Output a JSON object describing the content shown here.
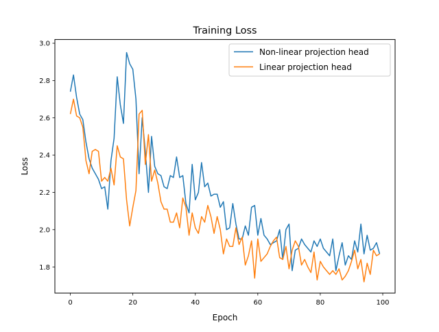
{
  "chart_data": {
    "type": "line",
    "title": "Training Loss",
    "xlabel": "Epoch",
    "ylabel": "Loss",
    "xlim": [
      -4.95,
      103.95
    ],
    "ylim": [
      1.66,
      3.02
    ],
    "x_ticks": [
      0,
      20,
      40,
      60,
      80,
      100
    ],
    "y_ticks": [
      1.8,
      2.0,
      2.2,
      2.4,
      2.6,
      2.8,
      3.0
    ],
    "x_tick_labels": [
      "0",
      "20",
      "40",
      "60",
      "80",
      "100"
    ],
    "y_tick_labels": [
      "1.8",
      "2.0",
      "2.2",
      "2.4",
      "2.6",
      "2.8",
      "3.0"
    ],
    "grid": false,
    "legend_position": "top-right",
    "x": [
      0,
      1,
      2,
      3,
      4,
      5,
      6,
      7,
      8,
      9,
      10,
      11,
      12,
      13,
      14,
      15,
      16,
      17,
      18,
      19,
      20,
      21,
      22,
      23,
      24,
      25,
      26,
      27,
      28,
      29,
      30,
      31,
      32,
      33,
      34,
      35,
      36,
      37,
      38,
      39,
      40,
      41,
      42,
      43,
      44,
      45,
      46,
      47,
      48,
      49,
      50,
      51,
      52,
      53,
      54,
      55,
      56,
      57,
      58,
      59,
      60,
      61,
      62,
      63,
      64,
      65,
      66,
      67,
      68,
      69,
      70,
      71,
      72,
      73,
      74,
      75,
      76,
      77,
      78,
      79,
      80,
      81,
      82,
      83,
      84,
      85,
      86,
      87,
      88,
      89,
      90,
      91,
      92,
      93,
      94,
      95,
      96,
      97,
      98,
      99
    ],
    "series": [
      {
        "name": "Non-linear projection head",
        "color": "#1f77b4",
        "values": [
          2.74,
          2.83,
          2.71,
          2.62,
          2.59,
          2.47,
          2.38,
          2.33,
          2.3,
          2.27,
          2.22,
          2.23,
          2.11,
          2.37,
          2.49,
          2.82,
          2.67,
          2.57,
          2.95,
          2.89,
          2.86,
          2.7,
          2.3,
          2.6,
          2.42,
          2.2,
          2.5,
          2.34,
          2.3,
          2.29,
          2.23,
          2.22,
          2.29,
          2.28,
          2.39,
          2.28,
          2.29,
          2.14,
          2.09,
          2.35,
          2.16,
          2.2,
          2.36,
          2.23,
          2.25,
          2.18,
          2.19,
          2.19,
          2.12,
          2.15,
          2.0,
          2.01,
          2.14,
          2.03,
          1.95,
          1.95,
          2.02,
          1.97,
          2.12,
          2.13,
          1.97,
          2.06,
          1.97,
          1.95,
          1.92,
          1.93,
          1.94,
          2.0,
          1.84,
          2.0,
          2.03,
          1.78,
          1.89,
          1.9,
          1.95,
          1.92,
          1.9,
          1.88,
          1.94,
          1.91,
          1.95,
          1.9,
          1.88,
          1.86,
          1.95,
          1.78,
          1.86,
          1.93,
          1.81,
          1.86,
          1.84,
          1.94,
          1.88,
          2.03,
          1.87,
          1.97,
          1.89,
          1.9,
          1.93,
          1.87
        ]
      },
      {
        "name": "Linear projection head",
        "color": "#ff7f0e",
        "values": [
          2.62,
          2.7,
          2.61,
          2.6,
          2.55,
          2.37,
          2.3,
          2.42,
          2.43,
          2.42,
          2.26,
          2.28,
          2.26,
          2.33,
          2.24,
          2.45,
          2.39,
          2.38,
          2.16,
          2.02,
          2.12,
          2.21,
          2.62,
          2.64,
          2.35,
          2.51,
          2.26,
          2.32,
          2.25,
          2.15,
          2.11,
          2.11,
          2.04,
          2.04,
          2.09,
          2.01,
          2.17,
          2.12,
          1.97,
          2.09,
          2.01,
          1.98,
          2.07,
          2.04,
          2.13,
          2.07,
          1.98,
          2.07,
          2.0,
          1.87,
          1.95,
          1.91,
          1.91,
          2.01,
          1.92,
          1.96,
          1.81,
          1.86,
          1.94,
          1.74,
          1.95,
          1.83,
          1.85,
          1.87,
          1.91,
          1.94,
          1.96,
          1.85,
          1.84,
          1.91,
          1.79,
          1.89,
          1.94,
          1.91,
          1.81,
          1.84,
          1.8,
          1.77,
          1.88,
          1.73,
          1.83,
          1.8,
          1.78,
          1.76,
          1.78,
          1.76,
          1.79,
          1.73,
          1.75,
          1.78,
          1.83,
          1.89,
          1.79,
          1.84,
          1.72,
          1.82,
          1.76,
          1.89,
          1.86,
          1.87
        ]
      }
    ]
  }
}
